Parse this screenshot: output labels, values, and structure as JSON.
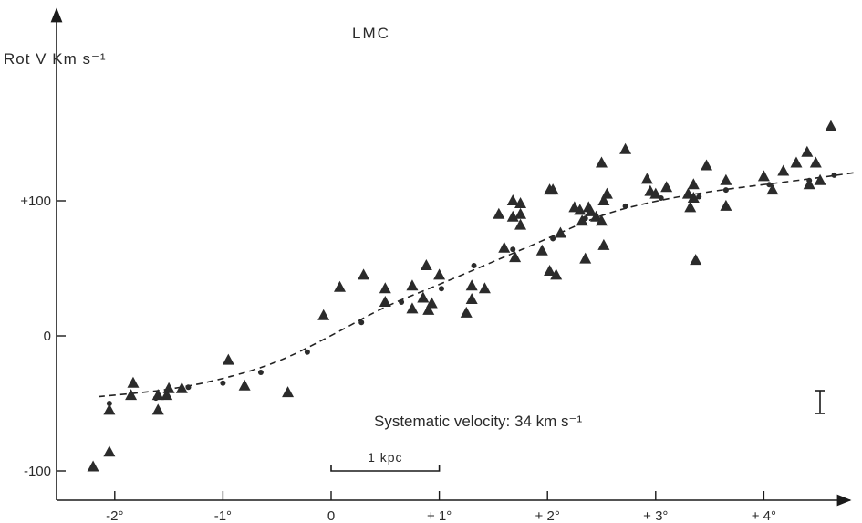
{
  "chart_data": {
    "type": "scatter",
    "title": "LMC",
    "ylabel": "Rot V  Km s⁻¹",
    "xlabel": "",
    "xlim": [
      -2.4,
      4.7
    ],
    "ylim": [
      -120,
      200
    ],
    "x_ticks": [
      {
        "value": -2,
        "label": "-2°"
      },
      {
        "value": -1,
        "label": "-1°"
      },
      {
        "value": 0,
        "label": "0"
      },
      {
        "value": 1,
        "label": "+ 1°"
      },
      {
        "value": 2,
        "label": "+ 2°"
      },
      {
        "value": 3,
        "label": "+ 3°"
      },
      {
        "value": 4,
        "label": "+ 4°"
      }
    ],
    "y_ticks": [
      {
        "value": 100,
        "label": "+100"
      },
      {
        "value": 0,
        "label": "0"
      },
      {
        "value": -100,
        "label": "-100"
      }
    ],
    "grid": false,
    "annotation": "Systematic velocity: 34 km s⁻¹",
    "scale_bar": {
      "label": "1 kpc",
      "from": 0,
      "to": 1
    },
    "series": [
      {
        "marker": "triangle",
        "points": [
          [
            -2.2,
            -97
          ],
          [
            -2.05,
            -86
          ],
          [
            -2.05,
            -55
          ],
          [
            -1.85,
            -44
          ],
          [
            -1.83,
            -35
          ],
          [
            -1.6,
            -55
          ],
          [
            -1.6,
            -44
          ],
          [
            -1.52,
            -44
          ],
          [
            -1.5,
            -39
          ],
          [
            -1.38,
            -39
          ],
          [
            -0.95,
            -18
          ],
          [
            -0.8,
            -37
          ],
          [
            -0.4,
            -42
          ],
          [
            -0.07,
            15
          ],
          [
            0.08,
            36
          ],
          [
            0.3,
            45
          ],
          [
            0.5,
            35
          ],
          [
            0.5,
            25
          ],
          [
            0.75,
            37
          ],
          [
            0.75,
            20
          ],
          [
            0.88,
            52
          ],
          [
            0.85,
            28
          ],
          [
            0.9,
            19
          ],
          [
            0.93,
            24
          ],
          [
            1.0,
            45
          ],
          [
            1.25,
            17
          ],
          [
            1.3,
            37
          ],
          [
            1.3,
            27
          ],
          [
            1.42,
            35
          ],
          [
            1.6,
            65
          ],
          [
            1.55,
            90
          ],
          [
            1.68,
            100
          ],
          [
            1.68,
            88
          ],
          [
            1.7,
            58
          ],
          [
            1.75,
            82
          ],
          [
            1.75,
            98
          ],
          [
            1.75,
            90
          ],
          [
            1.95,
            63
          ],
          [
            2.02,
            108
          ],
          [
            2.05,
            108
          ],
          [
            2.02,
            48
          ],
          [
            2.08,
            45
          ],
          [
            2.12,
            76
          ],
          [
            2.25,
            95
          ],
          [
            2.3,
            93
          ],
          [
            2.32,
            85
          ],
          [
            2.38,
            95
          ],
          [
            2.4,
            92
          ],
          [
            2.35,
            57
          ],
          [
            2.45,
            88
          ],
          [
            2.5,
            85
          ],
          [
            2.52,
            100
          ],
          [
            2.5,
            128
          ],
          [
            2.55,
            105
          ],
          [
            2.52,
            67
          ],
          [
            2.72,
            138
          ],
          [
            2.92,
            116
          ],
          [
            2.95,
            107
          ],
          [
            3.0,
            105
          ],
          [
            3.1,
            110
          ],
          [
            3.3,
            105
          ],
          [
            3.32,
            95
          ],
          [
            3.35,
            102
          ],
          [
            3.35,
            112
          ],
          [
            3.37,
            56
          ],
          [
            3.47,
            126
          ],
          [
            3.65,
            115
          ],
          [
            3.65,
            96
          ],
          [
            4.0,
            118
          ],
          [
            4.08,
            108
          ],
          [
            4.18,
            122
          ],
          [
            4.3,
            128
          ],
          [
            4.4,
            136
          ],
          [
            4.42,
            112
          ],
          [
            4.48,
            128
          ],
          [
            4.52,
            115
          ],
          [
            4.62,
            155
          ]
        ]
      },
      {
        "marker": "circle",
        "points": [
          [
            -2.05,
            -50
          ],
          [
            -1.62,
            -46
          ],
          [
            -1.32,
            -38
          ],
          [
            -1.0,
            -35
          ],
          [
            -0.65,
            -27
          ],
          [
            -0.22,
            -12
          ],
          [
            0.28,
            10
          ],
          [
            0.65,
            25
          ],
          [
            1.02,
            35
          ],
          [
            1.32,
            52
          ],
          [
            1.68,
            64
          ],
          [
            2.05,
            72
          ],
          [
            2.35,
            87
          ],
          [
            2.72,
            96
          ],
          [
            3.05,
            102
          ],
          [
            3.4,
            103
          ],
          [
            3.65,
            108
          ],
          [
            4.05,
            112
          ],
          [
            4.42,
            115
          ],
          [
            4.65,
            119
          ]
        ]
      },
      {
        "marker": "dashed-line",
        "points": [
          [
            -2.15,
            -45
          ],
          [
            -1.5,
            -40
          ],
          [
            -1.0,
            -32
          ],
          [
            -0.5,
            -20
          ],
          [
            0,
            0
          ],
          [
            0.5,
            22
          ],
          [
            1.0,
            38
          ],
          [
            1.5,
            55
          ],
          [
            2.0,
            72
          ],
          [
            2.5,
            90
          ],
          [
            3.0,
            100
          ],
          [
            3.5,
            107
          ],
          [
            4.0,
            112
          ],
          [
            4.5,
            117
          ],
          [
            4.85,
            121
          ]
        ]
      }
    ]
  }
}
